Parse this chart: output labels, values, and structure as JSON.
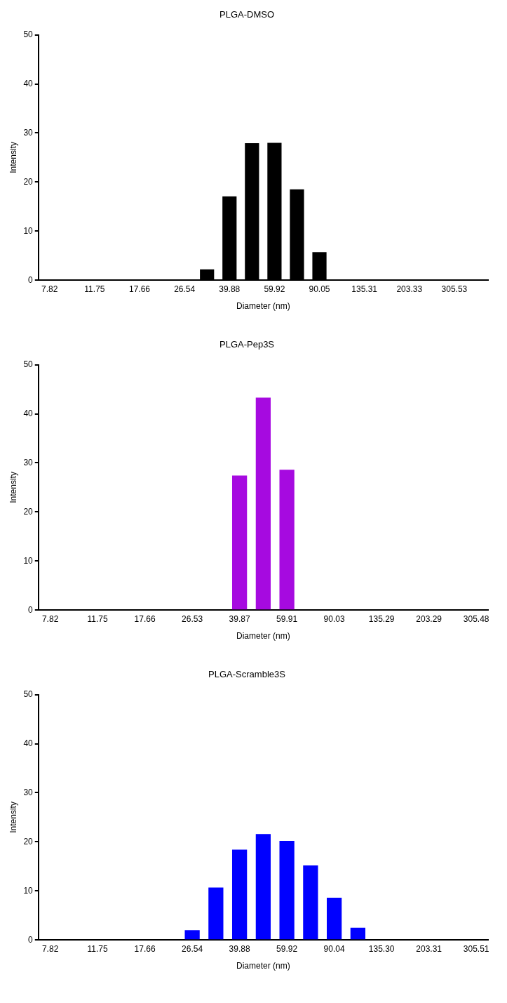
{
  "chart_data": [
    {
      "type": "bar",
      "title": "PLGA-DMSO",
      "xlabel": "Diameter (nm)",
      "ylabel": "Intensity",
      "categories": [
        "7.82",
        null,
        "11.75",
        null,
        "17.66",
        null,
        "26.54",
        null,
        "39.88",
        null,
        "59.92",
        null,
        "90.05",
        null,
        "135.31",
        null,
        "203.33",
        null,
        "305.53",
        null
      ],
      "values": [
        0,
        0,
        0,
        0,
        0,
        0,
        0,
        2.2,
        17.1,
        27.9,
        28.0,
        18.5,
        5.7,
        0,
        0,
        0,
        0,
        0,
        0,
        0
      ],
      "color": "#000000",
      "ylim": [
        0,
        50
      ],
      "yticks": [
        0,
        10,
        20,
        30,
        40,
        50
      ],
      "grid": false
    },
    {
      "type": "bar",
      "title": "PLGA-Pep3S",
      "xlabel": "Diameter (nm)",
      "ylabel": "Intensity",
      "categories": [
        "7.82",
        null,
        "11.75",
        null,
        "17.66",
        null,
        "26.53",
        null,
        "39.87",
        null,
        "59.91",
        null,
        "90.03",
        null,
        "135.29",
        null,
        "203.29",
        null,
        "305.48"
      ],
      "values": [
        0,
        0,
        0,
        0,
        0,
        0,
        0,
        0,
        27.4,
        43.3,
        28.6,
        0,
        0,
        0,
        0,
        0,
        0,
        0,
        0
      ],
      "color": "#a60ae0",
      "ylim": [
        0,
        50
      ],
      "yticks": [
        0,
        10,
        20,
        30,
        40,
        50
      ],
      "grid": false
    },
    {
      "type": "bar",
      "title": "PLGA-Scramble3S",
      "xlabel": "Diameter (nm)",
      "ylabel": "Intensity",
      "categories": [
        "7.82",
        null,
        "11.75",
        null,
        "17.66",
        null,
        "26.54",
        null,
        "39.88",
        null,
        "59.92",
        null,
        "90.04",
        null,
        "135.30",
        null,
        "203.31",
        null,
        "305.51"
      ],
      "values": [
        0,
        0,
        0,
        0,
        0,
        0,
        2.0,
        10.7,
        18.4,
        21.6,
        20.2,
        15.2,
        8.6,
        2.5,
        0,
        0,
        0,
        0,
        0
      ],
      "color": "#0000ff",
      "ylim": [
        0,
        50
      ],
      "yticks": [
        0,
        10,
        20,
        30,
        40,
        50
      ],
      "grid": false
    }
  ]
}
